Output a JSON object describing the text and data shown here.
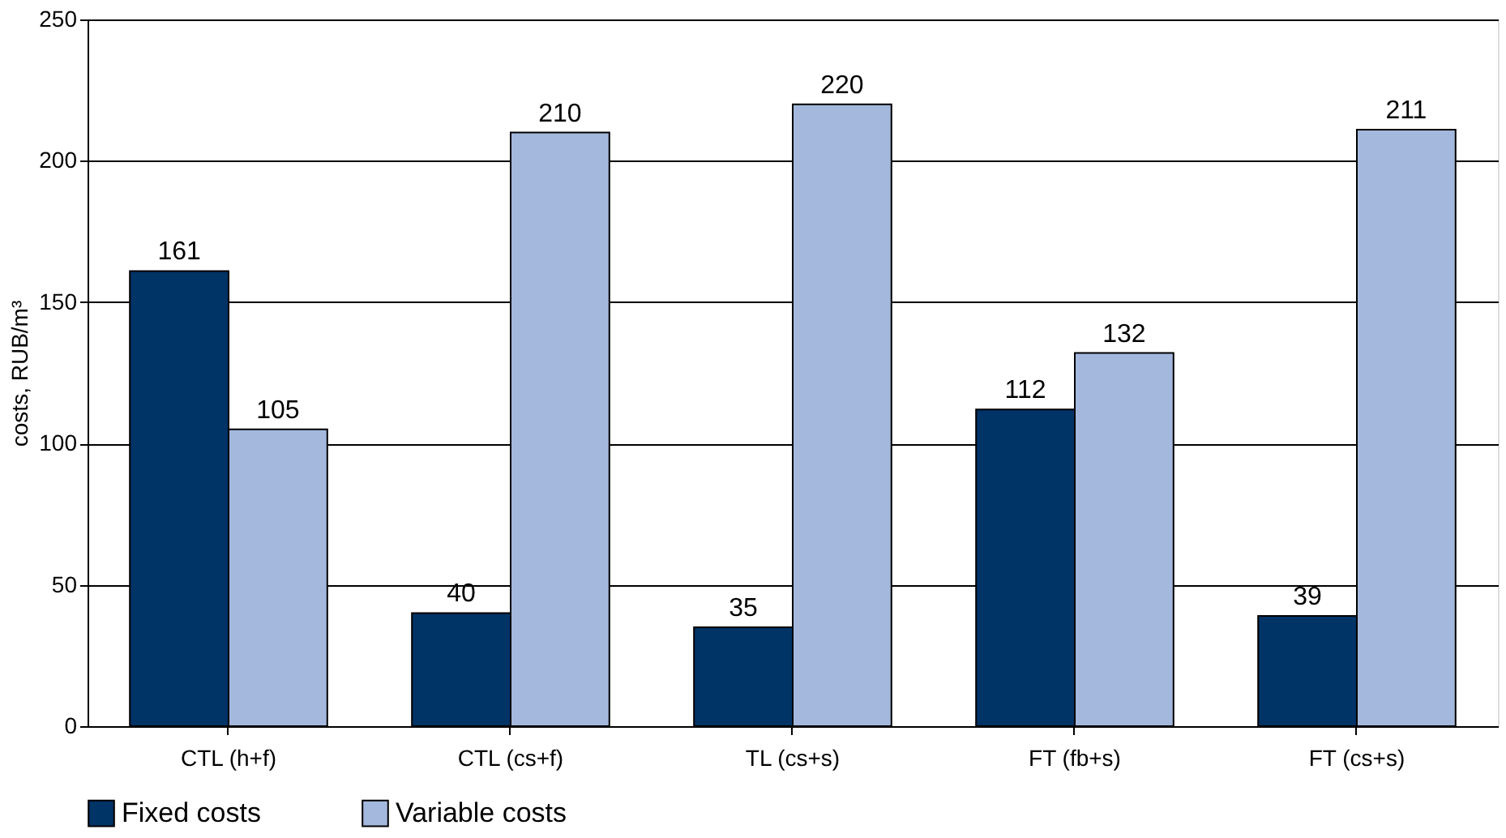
{
  "chart_data": {
    "type": "bar",
    "ylabel": "costs, RUB/m³",
    "categories": [
      "CTL (h+f)",
      "CTL (cs+f)",
      "TL (cs+s)",
      "FT (fb+s)",
      "FT (cs+s)"
    ],
    "series": [
      {
        "name": "Fixed costs",
        "color": "#003366",
        "values": [
          161,
          40,
          35,
          112,
          39
        ]
      },
      {
        "name": "Variable costs",
        "color": "#a3b8dc",
        "values": [
          105,
          210,
          220,
          132,
          211
        ]
      }
    ],
    "ylim": [
      0,
      250
    ],
    "yticks": [
      0,
      50,
      100,
      150,
      200,
      250
    ],
    "grid": "y",
    "legend": "bottom",
    "data_labels": true
  }
}
